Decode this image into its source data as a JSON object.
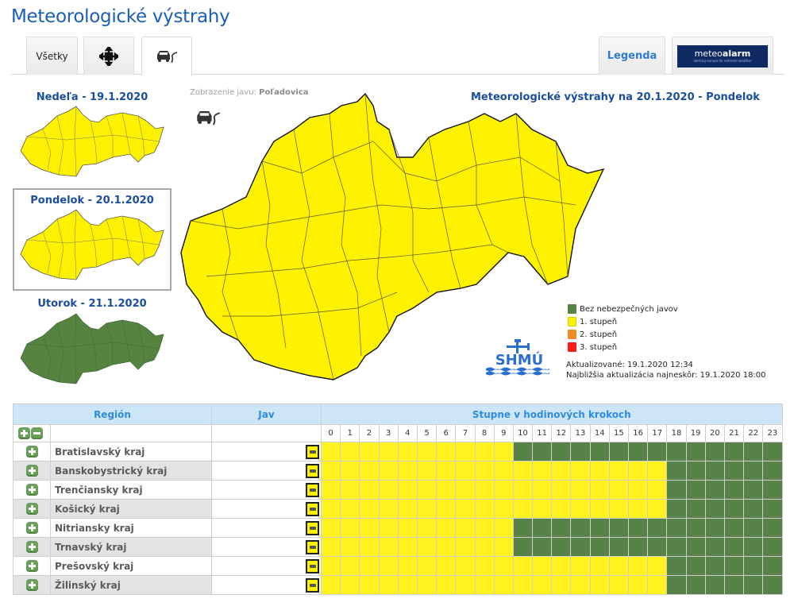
{
  "header": {
    "title": "Meteorologické výstrahy"
  },
  "tabs": [
    {
      "id": "all",
      "label": "Všetky",
      "icon": ""
    },
    {
      "id": "snow",
      "label": "",
      "icon": "snowflake-arrows-icon"
    },
    {
      "id": "ice",
      "label": "",
      "icon": "slippery-road-car-icon",
      "active": true
    }
  ],
  "right_tabs": {
    "legend_label": "Legenda",
    "meteoalarm": {
      "brand_light": "meteo",
      "brand_bold": "alarm",
      "tagline": "alerting europe for extreme weather"
    }
  },
  "days": [
    {
      "label": "Nedeľa - 19.1.2020",
      "color": "#fff200"
    },
    {
      "label": "Pondelok - 20.1.2020",
      "color": "#fff200",
      "selected": true
    },
    {
      "label": "Utorok - 21.1.2020",
      "color": "#54843f"
    }
  ],
  "main_map": {
    "phenomenon_prefix": "Zobrazenie javu:",
    "phenomenon_name": "Poľadovica",
    "title": "Meteorologické výstrahy na 20.1.2020 - Pondelok",
    "fill_color": "#fff200"
  },
  "legend": {
    "items": [
      {
        "label": "Bez nebezpečných javov",
        "color": "#54843f"
      },
      {
        "label": "1. stupeň",
        "color": "#fff200"
      },
      {
        "label": "2. stupeň",
        "color": "#f28c28"
      },
      {
        "label": "3. stupeň",
        "color": "#ff1a1a"
      }
    ]
  },
  "updates": {
    "updated": "Aktualizované: 19.1.2020 12:34",
    "next": "Najbližšia aktualizácia najneskôr: 19.1.2020 18:00"
  },
  "logo": {
    "text": "SHMÚ"
  },
  "table": {
    "headers": {
      "region": "Región",
      "jav": "Jav",
      "steps": "Stupne v hodinových krokoch"
    },
    "hours": [
      "0",
      "1",
      "2",
      "3",
      "4",
      "5",
      "6",
      "7",
      "8",
      "9",
      "10",
      "11",
      "12",
      "13",
      "14",
      "15",
      "16",
      "17",
      "18",
      "19",
      "20",
      "21",
      "22",
      "23"
    ],
    "colors": {
      "1": "#fff21f",
      "0": "#568248"
    },
    "rows": [
      {
        "region": "Bratislavský kraj",
        "levels": [
          1,
          1,
          1,
          1,
          1,
          1,
          1,
          1,
          1,
          1,
          0,
          0,
          0,
          0,
          0,
          0,
          0,
          0,
          0,
          0,
          0,
          0,
          0,
          0
        ]
      },
      {
        "region": "Banskobystrický kraj",
        "levels": [
          1,
          1,
          1,
          1,
          1,
          1,
          1,
          1,
          1,
          1,
          1,
          1,
          1,
          1,
          1,
          1,
          1,
          1,
          0,
          0,
          0,
          0,
          0,
          0
        ]
      },
      {
        "region": "Trenčiansky kraj",
        "levels": [
          1,
          1,
          1,
          1,
          1,
          1,
          1,
          1,
          1,
          1,
          1,
          1,
          1,
          1,
          1,
          1,
          1,
          1,
          0,
          0,
          0,
          0,
          0,
          0
        ]
      },
      {
        "region": "Košický kraj",
        "levels": [
          1,
          1,
          1,
          1,
          1,
          1,
          1,
          1,
          1,
          1,
          1,
          1,
          1,
          1,
          1,
          1,
          1,
          1,
          0,
          0,
          0,
          0,
          0,
          0
        ]
      },
      {
        "region": "Nitriansky kraj",
        "levels": [
          1,
          1,
          1,
          1,
          1,
          1,
          1,
          1,
          1,
          1,
          0,
          0,
          0,
          0,
          0,
          0,
          0,
          0,
          0,
          0,
          0,
          0,
          0,
          0
        ]
      },
      {
        "region": "Trnavský kraj",
        "levels": [
          1,
          1,
          1,
          1,
          1,
          1,
          1,
          1,
          1,
          1,
          0,
          0,
          0,
          0,
          0,
          0,
          0,
          0,
          0,
          0,
          0,
          0,
          0,
          0
        ]
      },
      {
        "region": "Prešovský kraj",
        "levels": [
          1,
          1,
          1,
          1,
          1,
          1,
          1,
          1,
          1,
          1,
          1,
          1,
          1,
          1,
          1,
          1,
          1,
          1,
          0,
          0,
          0,
          0,
          0,
          0
        ]
      },
      {
        "region": "Žilinský kraj",
        "levels": [
          1,
          1,
          1,
          1,
          1,
          1,
          1,
          1,
          1,
          1,
          1,
          1,
          1,
          1,
          1,
          1,
          1,
          1,
          0,
          0,
          0,
          0,
          0,
          0
        ]
      }
    ]
  }
}
